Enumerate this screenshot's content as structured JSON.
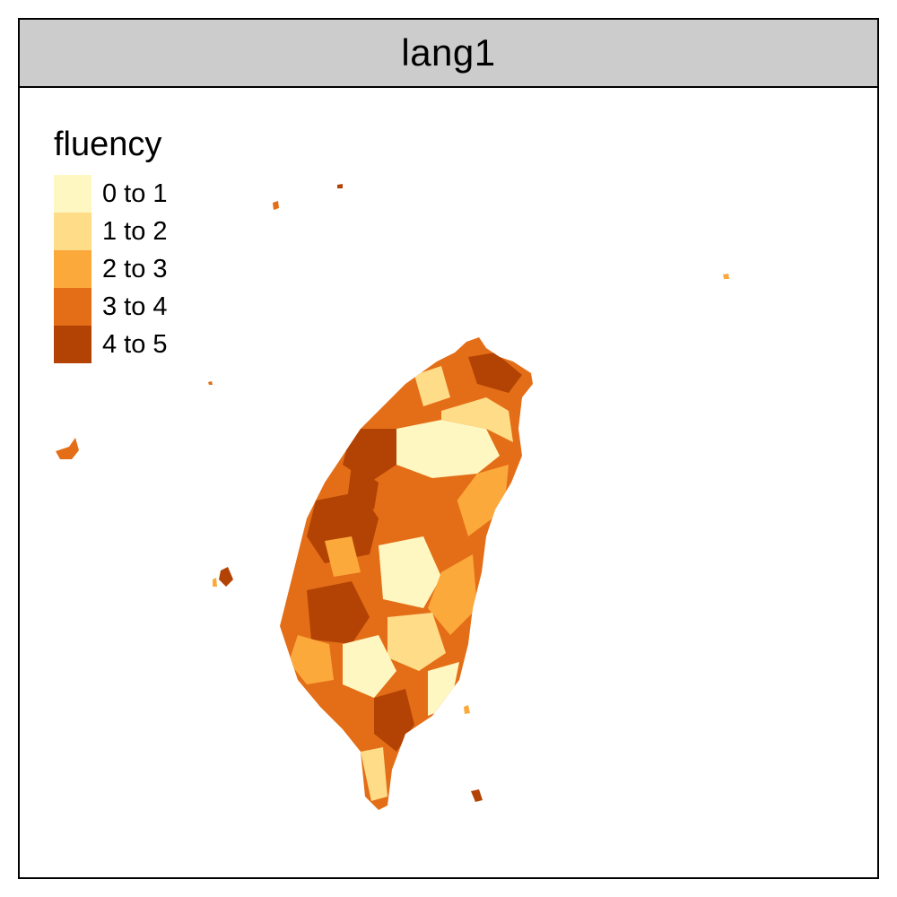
{
  "facet": {
    "title": "lang1"
  },
  "legend": {
    "title": "fluency",
    "items": [
      {
        "label": "0 to 1",
        "color": "#fff7c2"
      },
      {
        "label": "1 to 2",
        "color": "#fedc88"
      },
      {
        "label": "2 to 3",
        "color": "#fca93c"
      },
      {
        "label": "3 to 4",
        "color": "#e46e17"
      },
      {
        "label": "4 to 5",
        "color": "#b34304"
      }
    ]
  },
  "map": {
    "region": "Taiwan",
    "fill_variable": "fluency"
  }
}
